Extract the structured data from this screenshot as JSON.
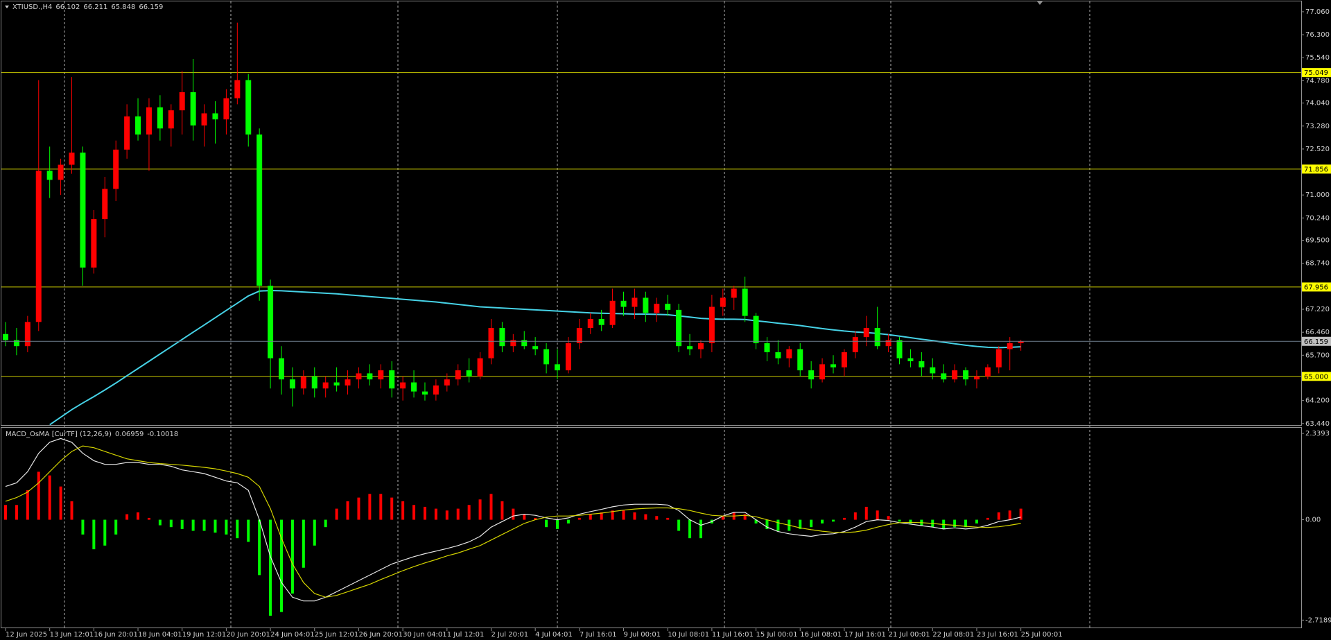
{
  "chart_data": [
    {
      "type": "candlestick",
      "title": "XTIUSD.,H4",
      "categories": [
        "12 Jun 2025",
        null,
        null,
        null,
        "13 Jun 12:01",
        null,
        null,
        null,
        "16 Jun 20:01",
        null,
        null,
        null,
        "18 Jun 04:01",
        null,
        null,
        null,
        "19 Jun 12:01",
        null,
        null,
        null,
        "20 Jun 20:01",
        null,
        null,
        null,
        "24 Jun 04:01",
        null,
        null,
        null,
        "25 Jun 12:01",
        null,
        null,
        null,
        "26 Jun 20:01",
        null,
        null,
        null,
        "30 Jun 04:01",
        null,
        null,
        null,
        "1 Jul 12:01",
        null,
        null,
        null,
        "2 Jul 20:01",
        null,
        null,
        null,
        "4 Jul 04:01",
        null,
        null,
        null,
        "7 Jul 16:01",
        null,
        null,
        null,
        "9 Jul 00:01",
        null,
        null,
        null,
        "10 Jul 08:01",
        null,
        null,
        null,
        "11 Jul 16:01",
        null,
        null,
        null,
        "15 Jul 00:01",
        null,
        null,
        null,
        "16 Jul 08:01",
        null,
        null,
        null,
        "17 Jul 16:01",
        null,
        null,
        null,
        "21 Jul 00:01",
        null,
        null,
        null,
        "22 Jul 08:01",
        null,
        null,
        null,
        "23 Jul 16:01",
        null,
        null,
        null,
        "25 Jul 00:01"
      ],
      "open": [
        66.4,
        66.2,
        66.0,
        66.8,
        71.8,
        71.5,
        72.0,
        72.4,
        68.6,
        70.2,
        71.2,
        72.5,
        73.6,
        73.0,
        73.9,
        73.2,
        73.8,
        74.4,
        73.3,
        73.7,
        73.5,
        74.2,
        74.8,
        73.0,
        68.0,
        65.6,
        64.9,
        64.6,
        65.0,
        64.6,
        64.8,
        64.7,
        64.9,
        65.1,
        64.9,
        65.2,
        64.6,
        64.8,
        64.5,
        64.4,
        64.7,
        64.9,
        65.2,
        65.0,
        65.6,
        66.6,
        66.0,
        66.2,
        66.0,
        65.9,
        65.4,
        65.2,
        66.1,
        66.6,
        66.9,
        66.7,
        67.5,
        67.3,
        67.6,
        67.1,
        67.4,
        67.2,
        66.0,
        65.9,
        66.1,
        67.3,
        67.6,
        67.9,
        67.0,
        66.1,
        65.8,
        65.6,
        65.9,
        65.2,
        64.9,
        65.4,
        65.3,
        65.8,
        66.3,
        66.6,
        66.0,
        66.2,
        65.6,
        65.5,
        65.3,
        65.1,
        64.9,
        65.2,
        64.9,
        65.0,
        65.3,
        65.9,
        66.102
      ],
      "high": [
        66.8,
        66.6,
        67.0,
        74.8,
        72.6,
        72.2,
        74.9,
        72.6,
        70.5,
        71.6,
        72.8,
        74.0,
        74.2,
        74.2,
        74.3,
        74.0,
        75.1,
        75.5,
        74.0,
        74.1,
        74.5,
        76.7,
        75.0,
        73.2,
        68.2,
        66.0,
        65.3,
        65.2,
        65.3,
        65.0,
        65.3,
        65.2,
        65.3,
        65.4,
        65.4,
        65.5,
        65.0,
        65.2,
        64.8,
        64.9,
        65.1,
        65.4,
        65.6,
        65.8,
        66.9,
        66.8,
        66.4,
        66.5,
        66.3,
        66.1,
        65.9,
        66.3,
        66.9,
        67.1,
        67.2,
        67.9,
        67.8,
        67.9,
        67.8,
        67.6,
        67.7,
        67.4,
        66.4,
        66.2,
        67.7,
        67.9,
        68.0,
        68.3,
        67.1,
        66.3,
        66.2,
        66.0,
        66.1,
        65.5,
        65.6,
        65.7,
        65.9,
        66.5,
        67.0,
        67.3,
        66.4,
        66.3,
        65.9,
        65.8,
        65.6,
        65.4,
        65.4,
        65.3,
        65.2,
        65.4,
        66.0,
        66.3,
        66.211
      ],
      "low": [
        66.0,
        65.7,
        65.8,
        66.5,
        70.9,
        71.0,
        71.7,
        68.0,
        68.4,
        69.6,
        70.8,
        72.2,
        72.8,
        71.8,
        72.8,
        72.6,
        73.0,
        72.8,
        72.6,
        72.7,
        73.0,
        74.0,
        72.6,
        67.5,
        64.6,
        64.4,
        64.0,
        64.4,
        64.3,
        64.3,
        64.5,
        64.4,
        64.6,
        64.7,
        64.6,
        64.3,
        64.2,
        64.3,
        64.2,
        64.2,
        64.5,
        64.7,
        64.8,
        64.9,
        65.4,
        65.8,
        65.8,
        65.9,
        65.7,
        65.1,
        64.9,
        65.1,
        65.9,
        66.4,
        66.5,
        66.6,
        67.0,
        66.9,
        66.8,
        66.8,
        67.0,
        65.8,
        65.7,
        65.6,
        65.8,
        67.0,
        67.2,
        66.8,
        65.9,
        65.5,
        65.4,
        65.3,
        65.0,
        64.6,
        64.8,
        65.1,
        65.0,
        65.6,
        66.0,
        65.9,
        65.8,
        65.4,
        65.3,
        65.0,
        64.9,
        64.8,
        64.8,
        64.7,
        64.6,
        64.9,
        65.1,
        65.2,
        65.848
      ],
      "close": [
        66.2,
        66.0,
        66.8,
        71.8,
        71.5,
        72.0,
        72.4,
        68.6,
        70.2,
        71.2,
        72.5,
        73.6,
        73.0,
        73.9,
        73.2,
        73.8,
        74.4,
        73.3,
        73.7,
        73.5,
        74.2,
        74.8,
        73.0,
        68.0,
        65.6,
        64.9,
        64.6,
        65.0,
        64.6,
        64.8,
        64.7,
        64.9,
        65.1,
        64.9,
        65.2,
        64.6,
        64.8,
        64.5,
        64.4,
        64.7,
        64.9,
        65.2,
        65.0,
        65.6,
        66.6,
        66.0,
        66.2,
        66.0,
        65.9,
        65.4,
        65.2,
        66.1,
        66.6,
        66.9,
        66.7,
        67.5,
        67.3,
        67.6,
        67.1,
        67.4,
        67.2,
        66.0,
        65.9,
        66.1,
        67.3,
        67.6,
        67.9,
        67.0,
        66.1,
        65.8,
        65.6,
        65.9,
        65.2,
        64.9,
        65.4,
        65.3,
        65.8,
        66.3,
        66.6,
        66.0,
        66.2,
        65.6,
        65.5,
        65.3,
        65.1,
        64.9,
        65.2,
        64.9,
        65.0,
        65.3,
        65.9,
        66.1,
        66.159
      ],
      "up_color": "#ff0000",
      "down_color": "#00ff00",
      "ma": {
        "color": "#46d2e6",
        "values": [
          null,
          null,
          null,
          null,
          63.4,
          63.65,
          63.9,
          64.12,
          64.33,
          64.55,
          64.78,
          65.02,
          65.26,
          65.5,
          65.74,
          65.98,
          66.22,
          66.46,
          66.7,
          66.94,
          67.18,
          67.42,
          67.66,
          67.82,
          67.84,
          67.83,
          67.81,
          67.79,
          67.77,
          67.75,
          67.73,
          67.7,
          67.67,
          67.64,
          67.61,
          67.58,
          67.55,
          67.52,
          67.49,
          67.46,
          67.42,
          67.38,
          67.34,
          67.3,
          67.28,
          67.26,
          67.24,
          67.22,
          67.2,
          67.18,
          67.16,
          67.14,
          67.12,
          67.1,
          67.09,
          67.08,
          67.07,
          67.06,
          67.06,
          67.05,
          67.04,
          67.0,
          66.96,
          66.92,
          66.9,
          66.89,
          66.89,
          66.88,
          66.84,
          66.8,
          66.76,
          66.72,
          66.68,
          66.63,
          66.58,
          66.54,
          66.5,
          66.47,
          66.45,
          66.42,
          66.38,
          66.33,
          66.28,
          66.23,
          66.18,
          66.13,
          66.08,
          66.03,
          65.99,
          65.96,
          65.95,
          65.96,
          65.98
        ]
      },
      "levels": [
        75.049,
        71.856,
        67.956,
        {
          "value": 65,
          "label": "65.000"
        }
      ],
      "level_color": "#c8c800",
      "level_label_color": "#ffff00",
      "price_line_color": "#708090",
      "ylim": [
        63.39,
        77.38
      ],
      "yticks": [
        {
          "value": 77.06,
          "label": "77.060"
        },
        {
          "value": 76.3,
          "label": "76.300"
        },
        {
          "value": 75.54,
          "label": "75.540"
        },
        {
          "value": 74.78,
          "label": "74.780"
        },
        {
          "value": 74.04,
          "label": "74.040"
        },
        {
          "value": 73.28,
          "label": "73.280"
        },
        {
          "value": 72.52,
          "label": "72.520"
        },
        {
          "value": 71,
          "label": "71.000"
        },
        {
          "value": 70.24,
          "label": "70.240"
        },
        {
          "value": 69.5,
          "label": "69.500"
        },
        {
          "value": 68.74,
          "label": "68.740"
        },
        {
          "value": 67.22,
          "label": "67.220"
        },
        {
          "value": 66.46,
          "label": "66.460"
        },
        {
          "value": 65.7,
          "label": "65.700"
        },
        {
          "value": 64.2,
          "label": "64.200"
        },
        {
          "value": 63.44,
          "label": "63.440"
        }
      ]
    },
    {
      "type": "macd",
      "title": "MACD_OsMA [CurTF] (12,26,9)",
      "histogram": {
        "pos_color": "#ff0000",
        "neg_color": "#00ff00",
        "values": [
          0.4,
          0.4,
          0.8,
          1.3,
          1.2,
          0.9,
          0.5,
          -0.4,
          -0.8,
          -0.7,
          -0.4,
          0.15,
          0.2,
          0.05,
          -0.15,
          -0.2,
          -0.25,
          -0.3,
          -0.3,
          -0.35,
          -0.4,
          -0.5,
          -0.6,
          -1.5,
          -2.6,
          -2.5,
          -2.0,
          -1.3,
          -0.7,
          -0.2,
          0.3,
          0.5,
          0.6,
          0.7,
          0.7,
          0.6,
          0.5,
          0.4,
          0.35,
          0.3,
          0.25,
          0.3,
          0.4,
          0.55,
          0.7,
          0.5,
          0.3,
          0.15,
          0.05,
          -0.2,
          -0.25,
          -0.1,
          0.05,
          0.15,
          0.2,
          0.25,
          0.25,
          0.2,
          0.15,
          0.1,
          0.05,
          -0.3,
          -0.5,
          -0.5,
          -0.1,
          0.1,
          0.2,
          0.15,
          -0.1,
          -0.25,
          -0.3,
          -0.3,
          -0.25,
          -0.2,
          -0.1,
          -0.05,
          0.05,
          0.2,
          0.35,
          0.25,
          0.1,
          -0.05,
          -0.1,
          -0.15,
          -0.2,
          -0.25,
          -0.2,
          -0.2,
          -0.1,
          0.05,
          0.2,
          0.25,
          0.3
        ]
      },
      "series": [
        {
          "color": "#e8e8e8",
          "values": [
            0.9,
            1.0,
            1.3,
            1.8,
            2.1,
            2.2,
            2.1,
            1.8,
            1.6,
            1.5,
            1.5,
            1.55,
            1.55,
            1.5,
            1.5,
            1.45,
            1.35,
            1.3,
            1.25,
            1.15,
            1.05,
            1.0,
            0.8,
            0.0,
            -1.0,
            -1.7,
            -2.1,
            -2.2,
            -2.2,
            -2.1,
            -1.95,
            -1.8,
            -1.65,
            -1.5,
            -1.35,
            -1.2,
            -1.1,
            -1.0,
            -0.92,
            -0.85,
            -0.78,
            -0.7,
            -0.6,
            -0.45,
            -0.2,
            -0.05,
            0.1,
            0.15,
            0.12,
            0.05,
            0.0,
            0.05,
            0.15,
            0.22,
            0.28,
            0.35,
            0.4,
            0.42,
            0.42,
            0.42,
            0.4,
            0.25,
            0.0,
            -0.15,
            -0.05,
            0.1,
            0.2,
            0.2,
            0.0,
            -0.2,
            -0.32,
            -0.38,
            -0.42,
            -0.45,
            -0.4,
            -0.38,
            -0.32,
            -0.2,
            -0.05,
            0.0,
            -0.02,
            -0.08,
            -0.12,
            -0.16,
            -0.2,
            -0.25,
            -0.22,
            -0.25,
            -0.22,
            -0.15,
            -0.05,
            0.0,
            0.06959
          ]
        },
        {
          "color": "#d4d400",
          "values": [
            0.5,
            0.6,
            0.75,
            1.0,
            1.3,
            1.6,
            1.85,
            2.0,
            1.95,
            1.85,
            1.75,
            1.65,
            1.6,
            1.55,
            1.52,
            1.5,
            1.48,
            1.45,
            1.42,
            1.38,
            1.32,
            1.25,
            1.15,
            0.9,
            0.3,
            -0.5,
            -1.2,
            -1.7,
            -2.0,
            -2.1,
            -2.05,
            -1.95,
            -1.85,
            -1.75,
            -1.62,
            -1.5,
            -1.38,
            -1.27,
            -1.17,
            -1.08,
            -0.98,
            -0.9,
            -0.8,
            -0.7,
            -0.55,
            -0.4,
            -0.25,
            -0.1,
            0.0,
            0.07,
            0.1,
            0.1,
            0.12,
            0.15,
            0.18,
            0.22,
            0.26,
            0.29,
            0.31,
            0.32,
            0.32,
            0.3,
            0.25,
            0.18,
            0.12,
            0.1,
            0.1,
            0.12,
            0.08,
            0.0,
            -0.08,
            -0.15,
            -0.22,
            -0.27,
            -0.31,
            -0.34,
            -0.35,
            -0.33,
            -0.28,
            -0.2,
            -0.13,
            -0.08,
            -0.07,
            -0.08,
            -0.1,
            -0.13,
            -0.15,
            -0.18,
            -0.2,
            -0.21,
            -0.19,
            -0.15,
            -0.10018
          ]
        }
      ],
      "ylim": [
        -2.92,
        2.49
      ],
      "yticks": [
        2.3393,
        {
          "value": 0,
          "label": "0.00"
        },
        -2.71899
      ]
    }
  ]
}
